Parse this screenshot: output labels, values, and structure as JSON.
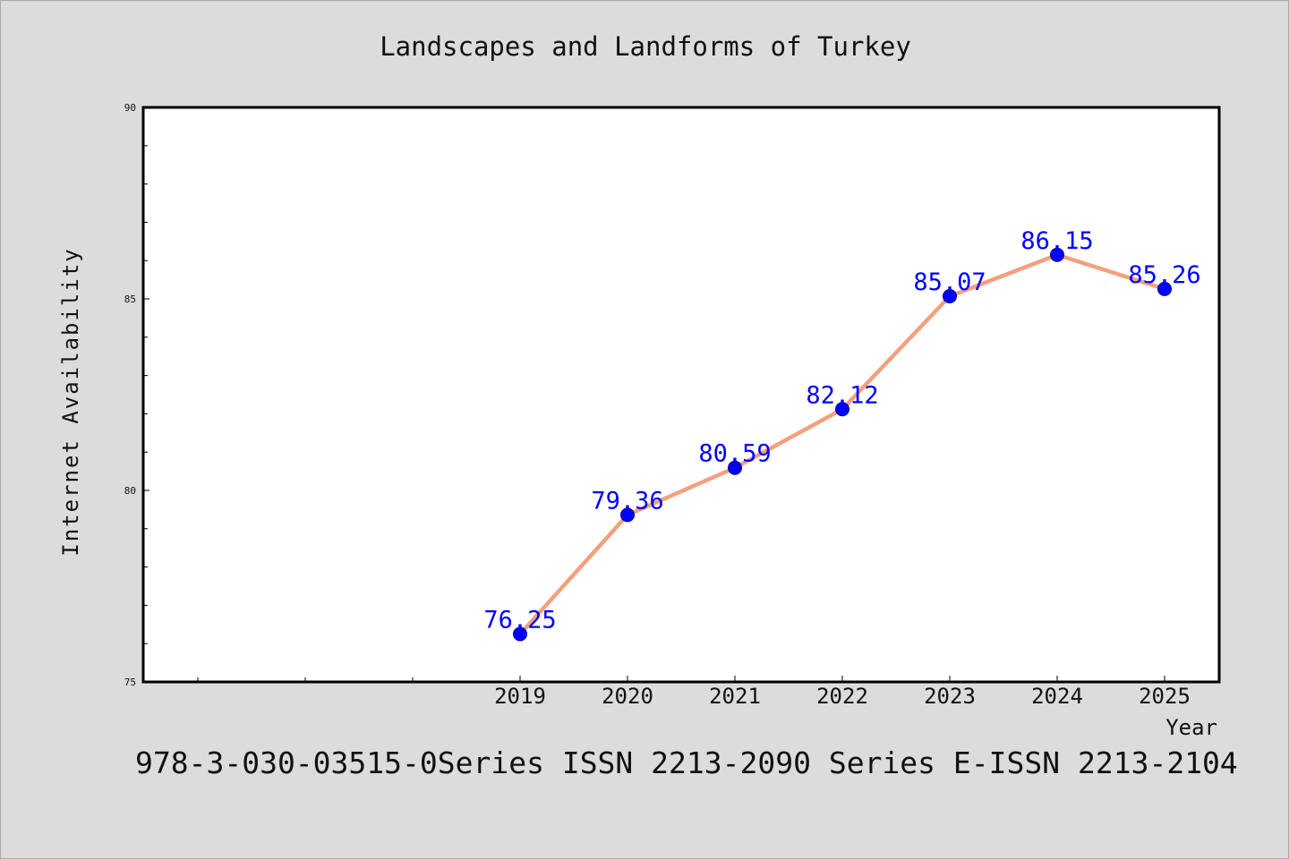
{
  "title": "Landscapes and Landforms of Turkey",
  "footer_text": "978-3-030-03515-0Series ISSN 2213-2090 Series E-ISSN 2213-2104",
  "colors": {
    "background": "#dcdcdc",
    "plot_background": "#ffffff",
    "line": "#f4a07e",
    "marker": "#0000ff",
    "data_label": "#0000ff"
  },
  "chart_data": {
    "type": "line",
    "xlabel": "Year",
    "ylabel": "Internet Availability",
    "categories": [
      "2019",
      "2020",
      "2021",
      "2022",
      "2023",
      "2024",
      "2025"
    ],
    "values": [
      76.25,
      79.36,
      80.59,
      82.12,
      85.07,
      86.15,
      85.26
    ],
    "data_labels": [
      "76.25",
      "79.36",
      "80.59",
      "82.12",
      "85.07",
      "86.15",
      "85.26"
    ],
    "ylim": [
      75,
      90
    ],
    "yticks": [
      "75",
      "80",
      "85",
      "90"
    ],
    "grid": false,
    "legend": "none"
  }
}
